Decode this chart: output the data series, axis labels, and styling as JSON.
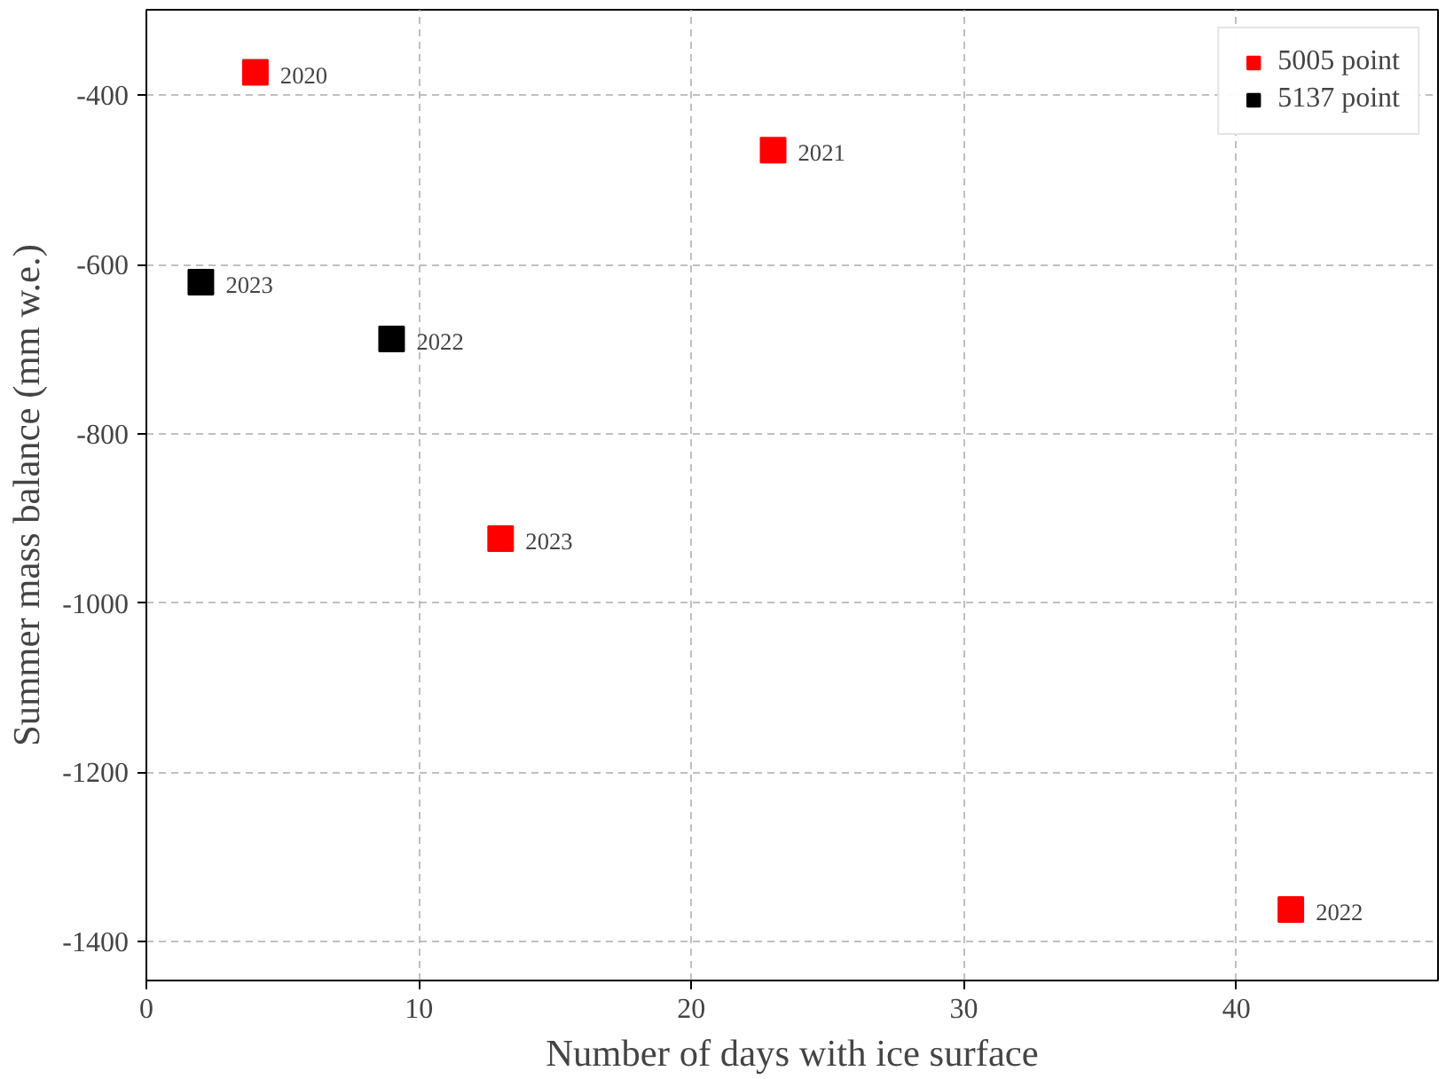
{
  "chart_data": {
    "type": "scatter",
    "xlabel": "Number of days with ice surface",
    "ylabel": "Summer mass balance (mm w.e.)",
    "xlim": [
      0,
      47.4
    ],
    "ylim": [
      -1446,
      -299
    ],
    "xticks": [
      0,
      10,
      20,
      30,
      40
    ],
    "yticks": [
      -1400,
      -1200,
      -1000,
      -800,
      -600,
      -400
    ],
    "grid": true,
    "legend": "top right",
    "marker": "square",
    "series": [
      {
        "name": "5005 point",
        "color": "#ff0000",
        "x": [
          4,
          23,
          13,
          42
        ],
        "values": [
          -373,
          -465,
          -924,
          -1362
        ]
      },
      {
        "name": "5137 point",
        "color": "#000000",
        "x": [
          2,
          9
        ],
        "values": [
          -621,
          -688
        ]
      }
    ],
    "annotations": [
      {
        "text": "2020",
        "x": 4,
        "y": -373
      },
      {
        "text": "2021",
        "x": 23,
        "y": -465
      },
      {
        "text": "2023",
        "x": 13,
        "y": -924
      },
      {
        "text": "2022",
        "x": 42,
        "y": -1362
      },
      {
        "text": "2023",
        "x": 2,
        "y": -621
      },
      {
        "text": "2022",
        "x": 9,
        "y": -688
      }
    ]
  }
}
